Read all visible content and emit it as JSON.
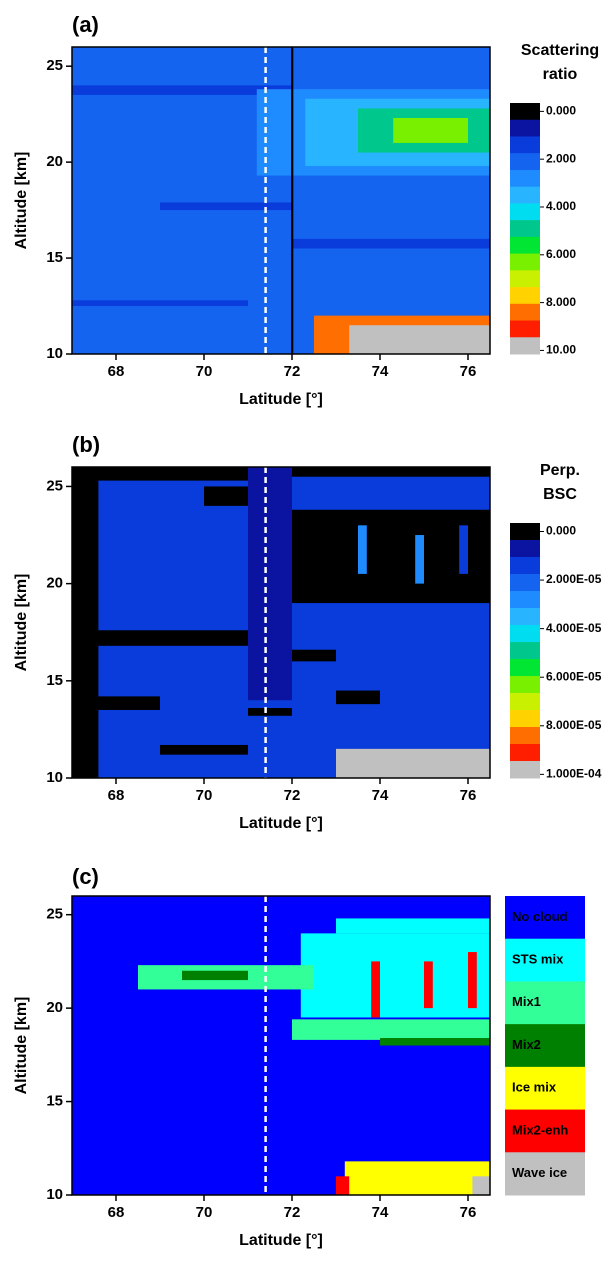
{
  "chart_data": [
    {
      "type": "heatmap",
      "panel_label": "(a)",
      "x_label": "Latitude [°]",
      "y_label": "Altitude [km]",
      "xlim": [
        67,
        76.5
      ],
      "ylim": [
        10,
        26
      ],
      "xticks": [
        68,
        70,
        72,
        74,
        76
      ],
      "yticks": [
        10,
        15,
        20,
        25
      ],
      "marker_line": 71.4,
      "colorbar": {
        "title": [
          "Scattering",
          "ratio"
        ],
        "lim": [
          0,
          10.5
        ],
        "colors": [
          "#000000",
          "#0a14a0",
          "#0a3cdc",
          "#1464f0",
          "#1e8cff",
          "#28b4ff",
          "#00dcf0",
          "#00c88c",
          "#00e632",
          "#78f000",
          "#c8f000",
          "#ffd200",
          "#ff6e00",
          "#ff1e00",
          "#c0c0c0"
        ],
        "ticks": [
          {
            "value": 0,
            "label": "0.000"
          },
          {
            "value": 2,
            "label": "2.000"
          },
          {
            "value": 4,
            "label": "4.000"
          },
          {
            "value": 6,
            "label": "6.000"
          },
          {
            "value": 8,
            "label": "8.000"
          },
          {
            "value": 10,
            "label": "10.00"
          }
        ]
      },
      "regions": [
        {
          "lat": [
            67,
            76.5
          ],
          "alt": [
            10,
            26
          ],
          "value": 2.3
        },
        {
          "lat": [
            67,
            72
          ],
          "alt": [
            23.5,
            24
          ],
          "value": 1.6
        },
        {
          "lat": [
            69,
            72
          ],
          "alt": [
            17.5,
            17.9
          ],
          "value": 1.6
        },
        {
          "lat": [
            72,
            76.5
          ],
          "alt": [
            15.5,
            16
          ],
          "value": 1.6
        },
        {
          "lat": [
            67,
            71
          ],
          "alt": [
            12.5,
            12.8
          ],
          "value": 1.6
        },
        {
          "lat": [
            71.2,
            76.5
          ],
          "alt": [
            19.3,
            23.8
          ],
          "value": 3
        },
        {
          "lat": [
            72.3,
            76.5
          ],
          "alt": [
            19.8,
            23.3
          ],
          "value": 3.6
        },
        {
          "lat": [
            73.5,
            76.5
          ],
          "alt": [
            20.5,
            22.8
          ],
          "value": 5
        },
        {
          "lat": [
            74.3,
            76
          ],
          "alt": [
            21,
            22.3
          ],
          "value": 6.6
        },
        {
          "lat": [
            72.5,
            76.5
          ],
          "alt": [
            10,
            12
          ],
          "value": 8.5
        },
        {
          "lat": [
            73.3,
            76.5
          ],
          "alt": [
            10,
            11.5
          ],
          "value": 10
        },
        {
          "lat": [
            71.98,
            72.03
          ],
          "alt": [
            10,
            26
          ],
          "value": 0
        }
      ]
    },
    {
      "type": "heatmap",
      "panel_label": "(b)",
      "x_label": "Latitude [°]",
      "y_label": "Altitude [km]",
      "xlim": [
        67,
        76.5
      ],
      "ylim": [
        10,
        26
      ],
      "xticks": [
        68,
        70,
        72,
        74,
        76
      ],
      "yticks": [
        10,
        15,
        20,
        25
      ],
      "marker_line": 71.4,
      "colorbar": {
        "title": [
          "Perp.",
          "BSC"
        ],
        "lim": [
          0,
          0.000105
        ],
        "colors": [
          "#000000",
          "#0a14a0",
          "#0a3cdc",
          "#1464f0",
          "#1e8cff",
          "#28b4ff",
          "#00dcf0",
          "#00c88c",
          "#00e632",
          "#78f000",
          "#c8f000",
          "#ffd200",
          "#ff6e00",
          "#ff1e00",
          "#c0c0c0"
        ],
        "ticks": [
          {
            "value": 0,
            "label": "0.000"
          },
          {
            "value": 2e-05,
            "label": "2.000E-05"
          },
          {
            "value": 4e-05,
            "label": "4.000E-05"
          },
          {
            "value": 6e-05,
            "label": "6.000E-05"
          },
          {
            "value": 8e-05,
            "label": "8.000E-05"
          },
          {
            "value": 0.0001,
            "label": "1.000E-04"
          }
        ]
      },
      "regions": [
        {
          "lat": [
            67,
            76.5
          ],
          "alt": [
            10,
            26
          ],
          "value": 1.5e-05
        },
        {
          "lat": [
            67,
            67.6
          ],
          "alt": [
            10,
            26
          ],
          "value": 0
        },
        {
          "lat": [
            67,
            72
          ],
          "alt": [
            25.3,
            26
          ],
          "value": 0
        },
        {
          "lat": [
            70,
            71
          ],
          "alt": [
            24,
            25
          ],
          "value": 0
        },
        {
          "lat": [
            67,
            71
          ],
          "alt": [
            16.8,
            17.6
          ],
          "value": 0
        },
        {
          "lat": [
            67,
            69
          ],
          "alt": [
            13.5,
            14.2
          ],
          "value": 0
        },
        {
          "lat": [
            69,
            71
          ],
          "alt": [
            11.2,
            11.7
          ],
          "value": 0
        },
        {
          "lat": [
            71,
            72
          ],
          "alt": [
            13.2,
            13.6
          ],
          "value": 0
        },
        {
          "lat": [
            72,
            73
          ],
          "alt": [
            16,
            16.6
          ],
          "value": 0
        },
        {
          "lat": [
            73,
            74
          ],
          "alt": [
            13.8,
            14.5
          ],
          "value": 0
        },
        {
          "lat": [
            72,
            76.5
          ],
          "alt": [
            25.5,
            26
          ],
          "value": 0
        },
        {
          "lat": [
            71,
            72
          ],
          "alt": [
            14,
            26
          ],
          "value": 9e-06
        },
        {
          "lat": [
            72,
            76.5
          ],
          "alt": [
            19,
            23.8
          ],
          "value": 2e-06
        },
        {
          "lat": [
            73.5,
            73.7
          ],
          "alt": [
            20.5,
            23
          ],
          "value": 3e-05
        },
        {
          "lat": [
            74.8,
            75
          ],
          "alt": [
            20,
            22.5
          ],
          "value": 3e-05
        },
        {
          "lat": [
            75.8,
            76
          ],
          "alt": [
            20.5,
            23
          ],
          "value": 2e-05
        },
        {
          "lat": [
            73,
            76.5
          ],
          "alt": [
            10,
            11.5
          ],
          "value": 0.0001
        }
      ]
    },
    {
      "type": "heatmap",
      "panel_label": "(c)",
      "x_label": "Latitude [°]",
      "y_label": "Altitude [km]",
      "xlim": [
        67,
        76.5
      ],
      "ylim": [
        10,
        26
      ],
      "xticks": [
        68,
        70,
        72,
        74,
        76
      ],
      "yticks": [
        10,
        15,
        20,
        25
      ],
      "marker_line": 71.4,
      "legend": [
        {
          "name": "No cloud",
          "color": "#0000ff"
        },
        {
          "name": "STS mix",
          "color": "#00ffff"
        },
        {
          "name": "Mix1",
          "color": "#33ff99"
        },
        {
          "name": "Mix2",
          "color": "#008000"
        },
        {
          "name": "Ice mix",
          "color": "#ffff00"
        },
        {
          "name": "Mix2-enh",
          "color": "#ff0000"
        },
        {
          "name": "Wave ice",
          "color": "#c0c0c0"
        }
      ],
      "regions": [
        {
          "lat": [
            67,
            76.5
          ],
          "alt": [
            10,
            26
          ],
          "class": "No cloud"
        },
        {
          "lat": [
            72.2,
            76.5
          ],
          "alt": [
            19.5,
            24
          ],
          "class": "STS mix"
        },
        {
          "lat": [
            73,
            76.5
          ],
          "alt": [
            24,
            24.8
          ],
          "class": "STS mix"
        },
        {
          "lat": [
            68.5,
            72.5
          ],
          "alt": [
            21,
            22.3
          ],
          "class": "Mix1"
        },
        {
          "lat": [
            72,
            76.5
          ],
          "alt": [
            18.3,
            19.4
          ],
          "class": "Mix1"
        },
        {
          "lat": [
            74,
            76.5
          ],
          "alt": [
            18,
            18.4
          ],
          "class": "Mix2"
        },
        {
          "lat": [
            69.5,
            71
          ],
          "alt": [
            21.5,
            22
          ],
          "class": "Mix2"
        },
        {
          "lat": [
            73.8,
            74
          ],
          "alt": [
            19.5,
            22.5
          ],
          "class": "Mix2-enh"
        },
        {
          "lat": [
            75,
            75.2
          ],
          "alt": [
            20,
            22.5
          ],
          "class": "Mix2-enh"
        },
        {
          "lat": [
            76,
            76.2
          ],
          "alt": [
            20,
            23
          ],
          "class": "Mix2-enh"
        },
        {
          "lat": [
            73.2,
            76.5
          ],
          "alt": [
            10,
            11.8
          ],
          "class": "Ice mix"
        },
        {
          "lat": [
            73,
            73.3
          ],
          "alt": [
            10,
            11
          ],
          "class": "Mix2-enh"
        },
        {
          "lat": [
            76.1,
            76.5
          ],
          "alt": [
            10,
            11
          ],
          "class": "Wave ice"
        }
      ]
    }
  ]
}
